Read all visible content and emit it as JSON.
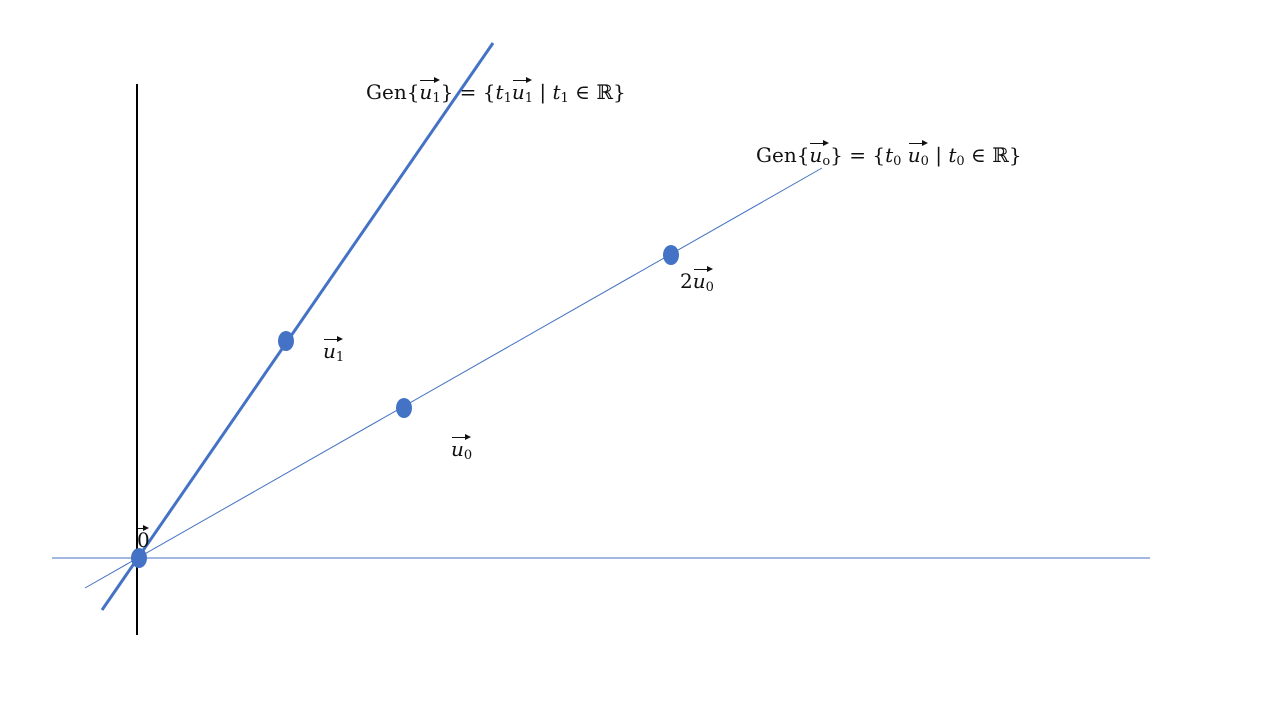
{
  "colors": {
    "axis": "#000000",
    "line_main": "#4472C4",
    "line_thin": "#4472C4",
    "point": "#4472C4",
    "text": "#111111"
  },
  "labels": {
    "gen_u1": {
      "prefix": "Gen{",
      "vec": "u",
      "vec_sub": "1",
      "mid": "} = {",
      "t": "t",
      "t_sub": "1",
      "vec2": "u",
      "vec2_sub": "1",
      "cond": " | ",
      "t2": "t",
      "t2_sub": "1",
      "tail": " ∈ ℝ}"
    },
    "gen_u0": {
      "prefix": "Gen{",
      "vec": "u",
      "vec_sub": "o",
      "mid": "} = {",
      "t": "t",
      "t_sub": "0",
      "vec2": "u",
      "vec2_sub": "0",
      "cond": " | ",
      "t2": "t",
      "t2_sub": "0",
      "tail": " ∈ ℝ}"
    },
    "u1": {
      "vec": "u",
      "sub": "1"
    },
    "u0": {
      "vec": "u",
      "sub": "0"
    },
    "two_u0": {
      "coef": "2",
      "vec": "u",
      "sub": "0"
    },
    "zero": {
      "vec": "0"
    }
  }
}
